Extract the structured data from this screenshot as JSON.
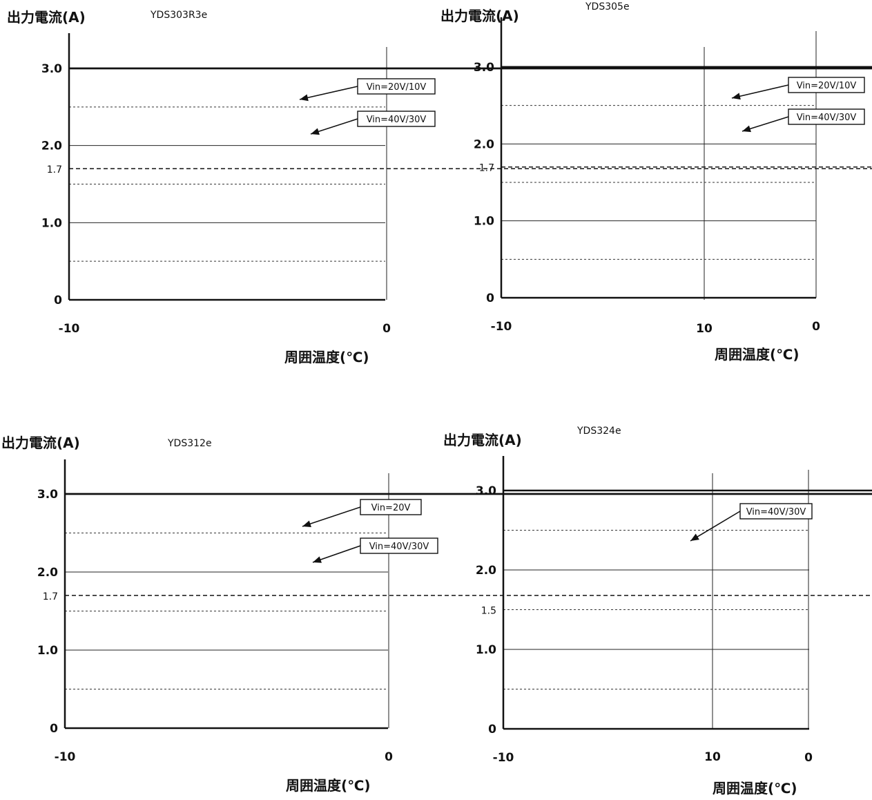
{
  "chart_data": [
    {
      "type": "line",
      "title": "YDS303R3e",
      "ylabel": "出力電流(A)",
      "xlabel": "周囲温度(℃)",
      "xlim": [
        -10,
        80
      ],
      "ylim": [
        0,
        3.0
      ],
      "x_ticks": [
        "-10",
        "0",
        "10",
        "20",
        "30",
        "40",
        "50",
        "60",
        "70",
        "80"
      ],
      "y_ticks": [
        {
          "value": 0,
          "label": "0"
        },
        {
          "value": 1.0,
          "label": "1.0"
        },
        {
          "value": 1.7,
          "label": "1.7"
        },
        {
          "value": 2.0,
          "label": "2.0"
        },
        {
          "value": 3.0,
          "label": "3.0"
        }
      ],
      "dashed_ref": [
        0.5,
        1.5,
        2.5
      ],
      "dashed_mark": 1.7,
      "series": [
        {
          "name": "Vin=20V/10V",
          "points": [
            [
              -10,
              3.0
            ],
            [
              50,
              3.0
            ],
            [
              80,
              2.0
            ],
            [
              80,
              0
            ]
          ]
        },
        {
          "name": "Vin=40V/30V",
          "points": [
            [
              -10,
              3.0
            ],
            [
              40,
              3.0
            ],
            [
              80,
              1.7
            ],
            [
              80,
              0
            ]
          ]
        }
      ]
    },
    {
      "type": "line",
      "title": "YDS305e",
      "ylabel": "出力電流(A)",
      "xlabel": "周囲温度(℃)",
      "xlim": [
        -10,
        80
      ],
      "ylim": [
        0,
        3.0
      ],
      "x_ticks": [
        "-10",
        "0",
        "10",
        "20",
        "30",
        "40",
        "50",
        "60",
        "70",
        "80"
      ],
      "y_ticks": [
        {
          "value": 0,
          "label": "0"
        },
        {
          "value": 1.0,
          "label": "1.0"
        },
        {
          "value": 1.7,
          "label": "1.7"
        },
        {
          "value": 2.0,
          "label": "2.0"
        },
        {
          "value": 3.0,
          "label": "3.0"
        }
      ],
      "dashed_ref": [
        0.5,
        1.5,
        2.5
      ],
      "dashed_mark": 1.7,
      "series": [
        {
          "name": "Vin=20V/10V",
          "points": [
            [
              -10,
              3.0
            ],
            [
              50,
              3.0
            ],
            [
              80,
              2.0
            ],
            [
              80,
              0
            ]
          ]
        },
        {
          "name": "Vin=40V/30V",
          "points": [
            [
              -10,
              3.0
            ],
            [
              40,
              3.0
            ],
            [
              80,
              1.7
            ],
            [
              80,
              0
            ]
          ]
        }
      ]
    },
    {
      "type": "line",
      "title": "YDS312e",
      "ylabel": "出力電流(A)",
      "xlabel": "周囲温度(℃)",
      "xlim": [
        -10,
        80
      ],
      "ylim": [
        0,
        3.0
      ],
      "x_ticks": [
        "-10",
        "0",
        "10",
        "20",
        "30",
        "40",
        "50",
        "60",
        "70",
        "80"
      ],
      "y_ticks": [
        {
          "value": 0,
          "label": "0"
        },
        {
          "value": 1.0,
          "label": "1.0"
        },
        {
          "value": 1.7,
          "label": "1.7"
        },
        {
          "value": 2.0,
          "label": "2.0"
        },
        {
          "value": 3.0,
          "label": "3.0"
        }
      ],
      "dashed_ref": [
        0.5,
        1.5,
        2.5
      ],
      "dashed_mark": 1.7,
      "series": [
        {
          "name": "Vin=20V",
          "points": [
            [
              -10,
              3.0
            ],
            [
              50,
              3.0
            ],
            [
              80,
              2.0
            ],
            [
              80,
              0
            ]
          ]
        },
        {
          "name": "Vin=40V/30V",
          "points": [
            [
              -10,
              3.0
            ],
            [
              40,
              3.0
            ],
            [
              80,
              1.7
            ],
            [
              80,
              0
            ]
          ]
        }
      ]
    },
    {
      "type": "line",
      "title": "YDS324e",
      "ylabel": "出力電流(A)",
      "xlabel": "周囲温度(℃)",
      "xlim": [
        -10,
        80
      ],
      "ylim": [
        0,
        3.0
      ],
      "x_ticks": [
        "-10",
        "0",
        "10",
        "20",
        "30",
        "40",
        "50",
        "60",
        "70",
        "80"
      ],
      "y_ticks": [
        {
          "value": 0,
          "label": "0"
        },
        {
          "value": 1.0,
          "label": "1.0"
        },
        {
          "value": 1.5,
          "label": "1.5"
        },
        {
          "value": 2.0,
          "label": "2.0"
        },
        {
          "value": 3.0,
          "label": "3.0"
        }
      ],
      "dashed_ref": [
        0.5,
        1.5,
        2.5
      ],
      "dashed_mark": null,
      "series": [
        {
          "name": "Vin=40V/30V",
          "points": [
            [
              -10,
              3.0
            ],
            [
              30,
              3.0
            ],
            [
              80,
              1.5
            ],
            [
              80,
              0
            ]
          ]
        }
      ]
    }
  ]
}
